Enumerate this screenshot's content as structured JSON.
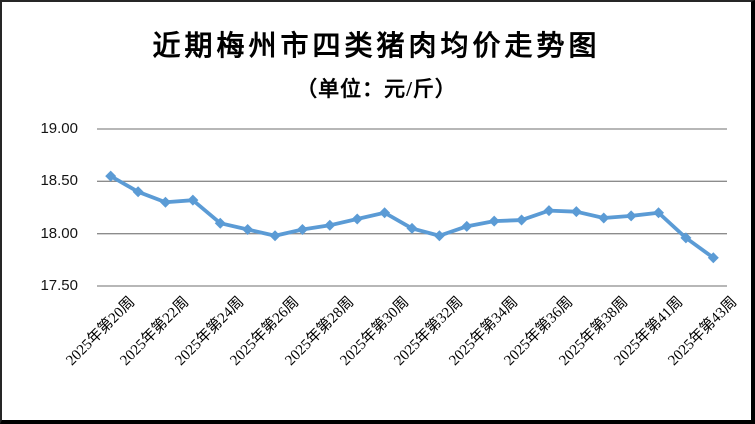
{
  "window": {
    "background_color": "#ffffff",
    "border_color": "#000000"
  },
  "chart_data": {
    "type": "line",
    "title": "近期梅州市四类猪肉均价走势图",
    "subtitle": "（单位：元/斤）",
    "unit": "元/斤",
    "values": [
      18.55,
      18.4,
      18.3,
      18.32,
      18.1,
      18.04,
      17.98,
      18.04,
      18.08,
      18.14,
      18.2,
      18.05,
      17.98,
      18.07,
      18.12,
      18.13,
      18.22,
      18.21,
      18.15,
      18.17,
      18.2,
      17.96,
      17.77
    ],
    "x_tick_labels": [
      "2025年第20周",
      "2025年第22周",
      "2025年第24周",
      "2025年第26周",
      "2025年第28周",
      "2025年第30周",
      "2025年第32周",
      "2025年第34周",
      "2025年第36周",
      "2025年第38周",
      "2025年第41周",
      "2025年第43周"
    ],
    "x_tick_indices": [
      0,
      2,
      4,
      6,
      8,
      10,
      12,
      14,
      16,
      18,
      20,
      22
    ],
    "y_ticks": [
      19.0,
      18.5,
      18.0,
      17.5
    ],
    "y_tick_labels": [
      "19.00",
      "18.50",
      "18.00",
      "17.50"
    ],
    "ylim": [
      17.5,
      19.0
    ],
    "grid": true,
    "legend": "none",
    "marker": "diamond",
    "line_color": "#5B9BD5",
    "gridline_color": "#8C8C8C",
    "text_color": "#000000"
  }
}
